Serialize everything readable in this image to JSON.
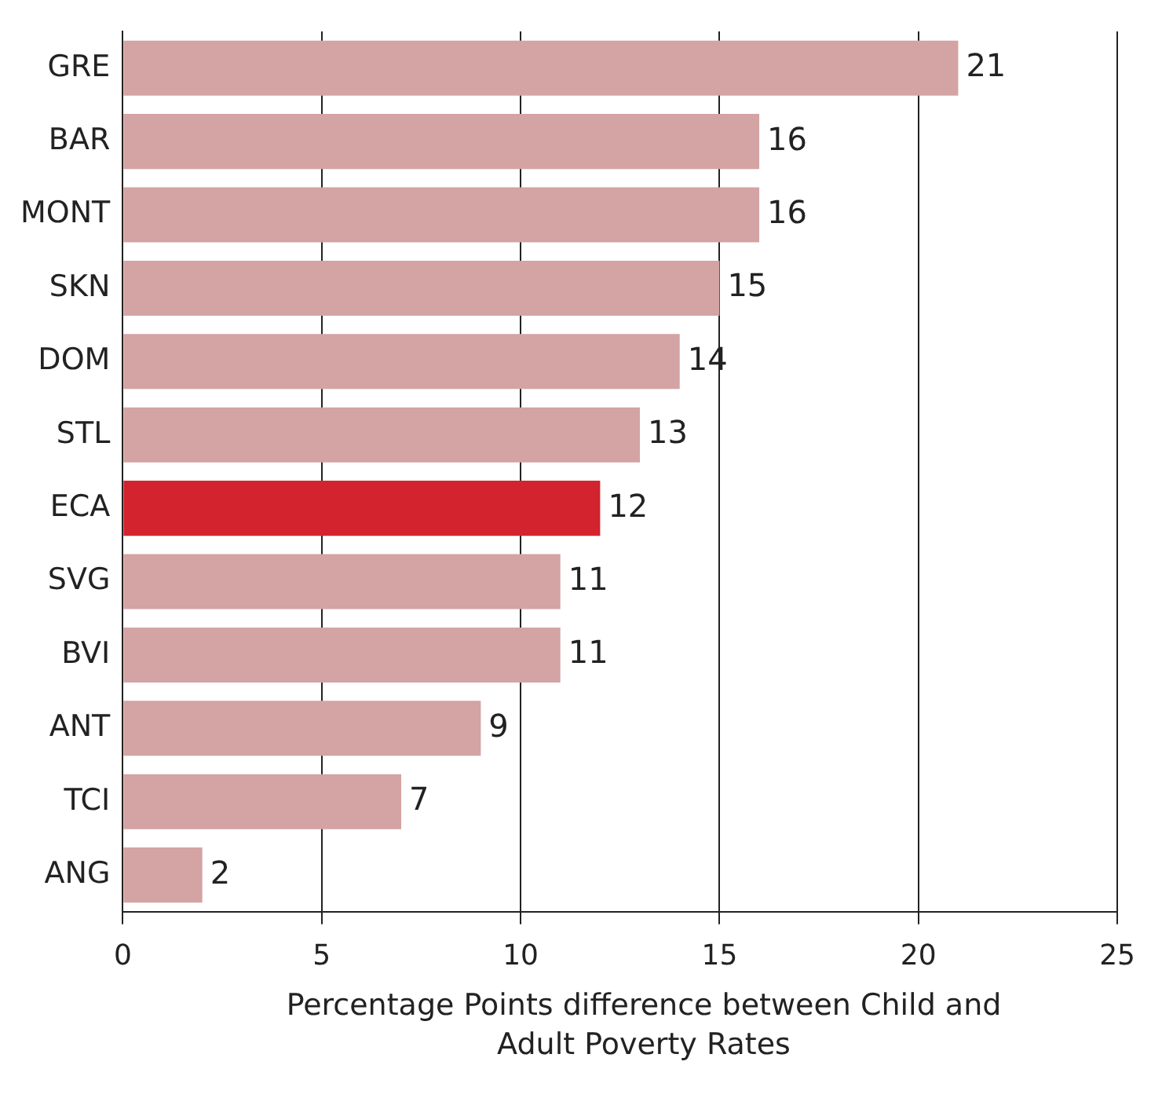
{
  "chart_data": {
    "type": "bar",
    "orientation": "horizontal",
    "categories": [
      "GRE",
      "BAR",
      "MONT",
      "SKN",
      "DOM",
      "STL",
      "ECA",
      "SVG",
      "BVI",
      "ANT",
      "TCI",
      "ANG"
    ],
    "values": [
      21,
      16,
      16,
      15,
      14,
      13,
      12,
      11,
      11,
      9,
      7,
      2
    ],
    "colors": [
      "#d4a3a3",
      "#d4a3a3",
      "#d4a3a3",
      "#d4a3a3",
      "#d4a3a3",
      "#d4a3a3",
      "#d3232e",
      "#d4a3a3",
      "#d4a3a3",
      "#d4a3a3",
      "#d4a3a3",
      "#d4a3a3"
    ],
    "xlim": [
      0,
      25
    ],
    "xticks": [
      0,
      5,
      10,
      15,
      20,
      25
    ],
    "xlabel": "Percentage Points difference between Child and Adult Poverty Rates",
    "grid": "x",
    "data_labels": true,
    "legend": false
  }
}
